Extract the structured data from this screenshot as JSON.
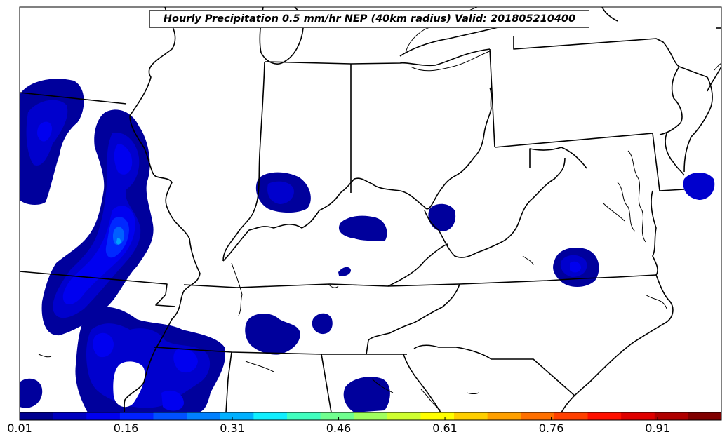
{
  "title": "Hourly Precipitation 0.5 mm/hr NEP (40km radius) Valid: 201805210400",
  "colorbar": {
    "min": 0.01,
    "max": 1.0,
    "tick_labels": [
      "0.01",
      "0.16",
      "0.31",
      "0.46",
      "0.61",
      "0.76",
      "0.91"
    ],
    "colors": [
      "#00008f",
      "#0000bf",
      "#0000ef",
      "#0020ff",
      "#0050ff",
      "#0080ff",
      "#00b0ff",
      "#10efff",
      "#40ffbf",
      "#70ff8f",
      "#a0ff5f",
      "#cfff30",
      "#ffff00",
      "#ffcf00",
      "#ffa000",
      "#ff7000",
      "#ff4000",
      "#ff1000",
      "#df0000",
      "#af0000",
      "#800000"
    ]
  },
  "field_colors": {
    "level1": "#00009c",
    "level2": "#0000cd",
    "level3": "#0000f0",
    "level4": "#0028ff",
    "level5": "#0060ff",
    "level6": "#00a0ff"
  }
}
